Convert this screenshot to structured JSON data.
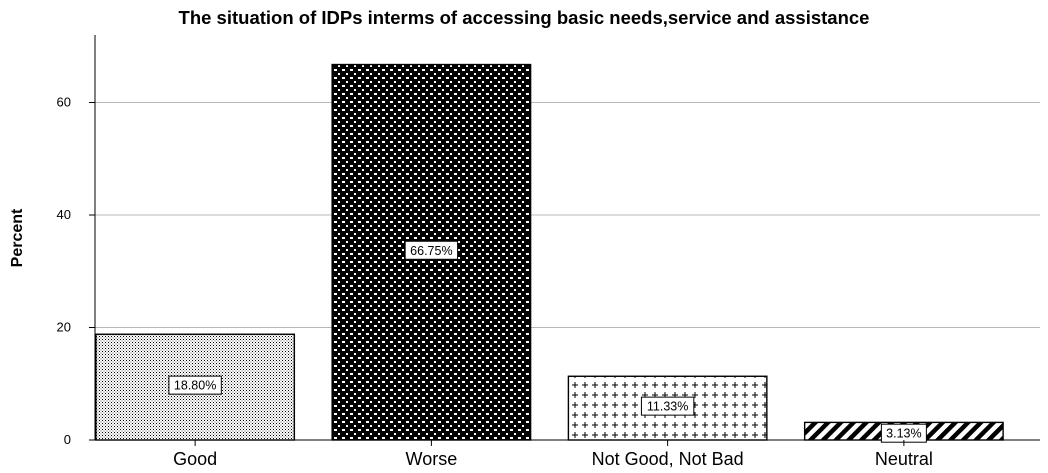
{
  "chart_data": {
    "type": "bar",
    "title": "The situation of IDPs interms of accessing basic needs,service and assistance",
    "xlabel": "",
    "ylabel": "Percent",
    "categories": [
      "Good",
      "Worse",
      "Not Good, Not Bad",
      "Neutral"
    ],
    "values": [
      18.8,
      66.75,
      11.33,
      3.13
    ],
    "data_labels": [
      "18.80%",
      "66.75%",
      "11.33%",
      "3.13%"
    ],
    "patterns": [
      "dots",
      "checkerboard",
      "crosses",
      "diagonal-stripes"
    ],
    "ylim": [
      0,
      72
    ],
    "yticks": [
      0,
      20,
      40,
      60
    ],
    "ytick_labels": [
      "0",
      "20",
      "40",
      "60"
    ],
    "grid": true,
    "colors": {
      "bar_outline": "#000000",
      "grid": "#b8b8b8",
      "fill": "#000000",
      "background": "#ffffff"
    }
  }
}
